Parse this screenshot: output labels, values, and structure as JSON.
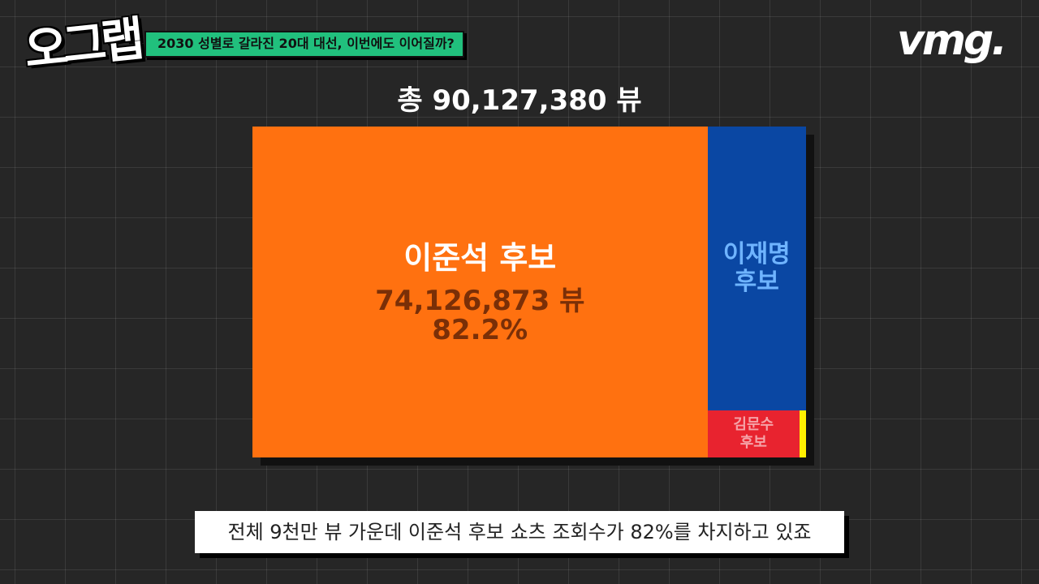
{
  "header": {
    "logo": "오그랩",
    "topic": "2030 성별로 갈라진 20대 대선, 이번에도 이어질까?",
    "brand": "vmg."
  },
  "total_label": "총 90,127,380 뷰",
  "subtitle": "전체 9천만 뷰 가운데 이준석 후보 쇼츠 조회수가 82%를 차지하고 있죠",
  "chart_data": {
    "type": "treemap",
    "title": "총 90,127,380 뷰",
    "total": 90127380,
    "items": [
      {
        "name": "이준석 후보",
        "value": 74126873,
        "value_label": "74,126,873 뷰",
        "percent_label": "82.2%",
        "color": "#ff7110"
      },
      {
        "name": "이재명 후보",
        "line1": "이재명",
        "line2": "후보",
        "color": "#0a47a3"
      },
      {
        "name": "김문수 후보",
        "line1": "김문수",
        "line2": "후보",
        "color": "#e8232f"
      },
      {
        "name": "",
        "color": "#ffef00"
      }
    ]
  }
}
